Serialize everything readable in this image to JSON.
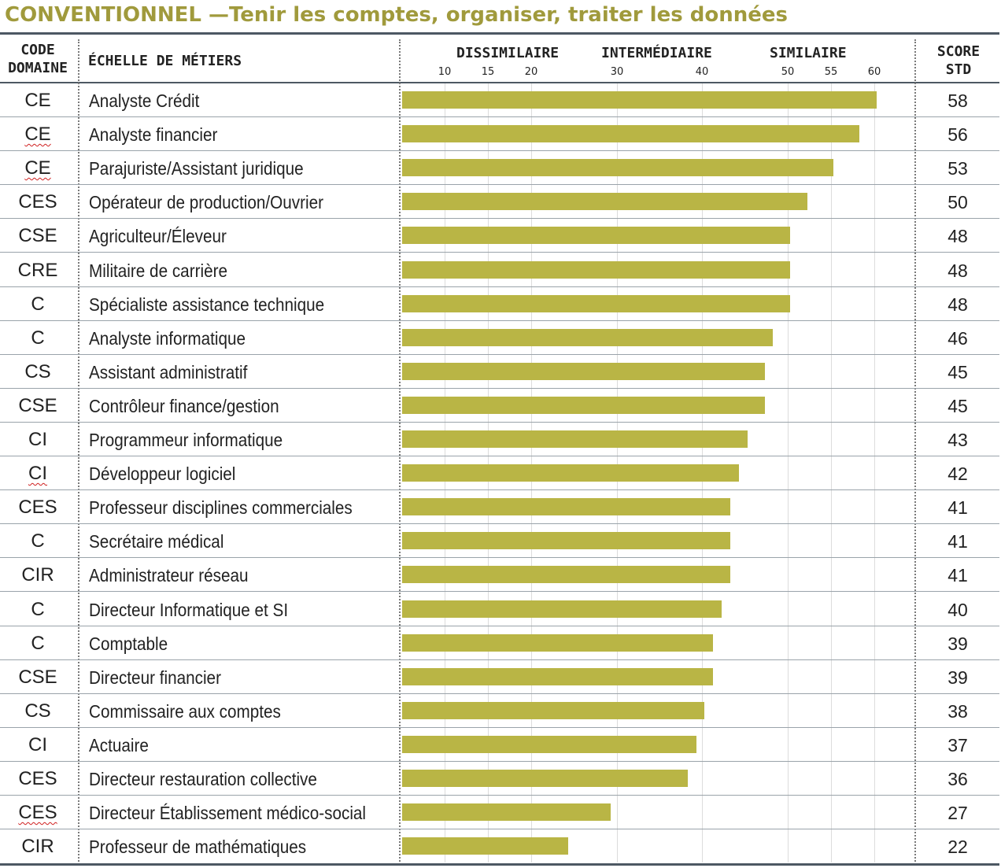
{
  "title": "CONVENTIONNEL —Tenir les comptes, organiser, traiter les données",
  "header": {
    "code_line1": "CODE",
    "code_line2": "DOMAINE",
    "scale": "ÉCHELLE DE MÉTIERS",
    "dissimilaire": "DISSIMILAIRE",
    "intermediaire": "INTERMÉDIAIRE",
    "similaire": "SIMILAIRE",
    "score_line1": "SCORE",
    "score_line2": "STD"
  },
  "colors": {
    "bar": "#b9b545",
    "title": "#a09a3c",
    "rule": "#4d5863"
  },
  "chart_data": {
    "type": "bar",
    "orientation": "horizontal",
    "x_ticks": [
      10,
      15,
      20,
      30,
      40,
      50,
      55,
      60
    ],
    "x_tick_labels": [
      "10",
      "15",
      "20",
      "30",
      "40",
      "50",
      "55",
      "60"
    ],
    "xlim": [
      5,
      60
    ],
    "grid": true,
    "rows": [
      {
        "code": "CE",
        "wavy": false,
        "label": "Analyste Crédit",
        "value": 58
      },
      {
        "code": "CE",
        "wavy": true,
        "label": "Analyste financier",
        "value": 56
      },
      {
        "code": "CE",
        "wavy": true,
        "label": "Parajuriste/Assistant juridique",
        "value": 53
      },
      {
        "code": "CES",
        "wavy": false,
        "label": "Opérateur de production/Ouvrier",
        "value": 50
      },
      {
        "code": "CSE",
        "wavy": false,
        "label": "Agriculteur/Éleveur",
        "value": 48
      },
      {
        "code": "CRE",
        "wavy": false,
        "label": "Militaire de carrière",
        "value": 48
      },
      {
        "code": "C",
        "wavy": false,
        "label": "Spécialiste assistance technique",
        "value": 48
      },
      {
        "code": "C",
        "wavy": false,
        "label": "Analyste informatique",
        "value": 46
      },
      {
        "code": "CS",
        "wavy": false,
        "label": "Assistant administratif",
        "value": 45
      },
      {
        "code": "CSE",
        "wavy": false,
        "label": "Contrôleur finance/gestion",
        "value": 45
      },
      {
        "code": "CI",
        "wavy": false,
        "label": "Programmeur informatique",
        "value": 43
      },
      {
        "code": "CI",
        "wavy": true,
        "label": "Développeur logiciel",
        "value": 42
      },
      {
        "code": "CES",
        "wavy": false,
        "label": "Professeur disciplines commerciales",
        "value": 41
      },
      {
        "code": "C",
        "wavy": false,
        "label": "Secrétaire médical",
        "value": 41
      },
      {
        "code": "CIR",
        "wavy": false,
        "label": "Administrateur réseau",
        "value": 41
      },
      {
        "code": "C",
        "wavy": false,
        "label": "Directeur Informatique et SI",
        "value": 40
      },
      {
        "code": "C",
        "wavy": false,
        "label": "Comptable",
        "value": 39
      },
      {
        "code": "CSE",
        "wavy": false,
        "label": "Directeur financier",
        "value": 39
      },
      {
        "code": "CS",
        "wavy": false,
        "label": "Commissaire aux comptes",
        "value": 38
      },
      {
        "code": "CI",
        "wavy": false,
        "label": "Actuaire",
        "value": 37
      },
      {
        "code": "CES",
        "wavy": false,
        "label": "Directeur restauration collective",
        "value": 36
      },
      {
        "code": "CES",
        "wavy": true,
        "label": "Directeur Établissement médico-social",
        "value": 27
      },
      {
        "code": "CIR",
        "wavy": false,
        "label": "Professeur de mathématiques",
        "value": 22
      }
    ]
  }
}
